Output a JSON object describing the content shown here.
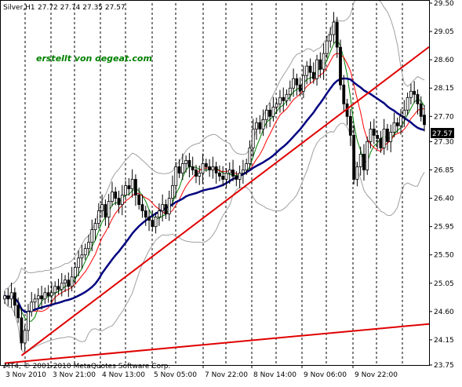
{
  "header": {
    "symbol_timeframe": "Silver,H1",
    "ohlc": "27.72 27.74 27.35 27.57"
  },
  "watermark": "erstellt von oegeat.com",
  "copyright": "MT4, © 2001-2010 MetaQuotes Software Corp.",
  "current_price": "27.57",
  "colors": {
    "background": "#ffffff",
    "candle_bull": "#ffffff",
    "candle_bear": "#000000",
    "trendline": "#e00000",
    "ma_slow": "#000080",
    "ma_fast": "#008000",
    "ma_red": "#ff0000",
    "bollinger": "#a0a0a0",
    "price_label_bg": "#000000"
  },
  "chart_data": {
    "type": "candlestick",
    "title": "Silver,H1",
    "ylim": [
      23.75,
      29.5
    ],
    "y_ticks": [
      "29.50",
      "29.05",
      "28.60",
      "28.15",
      "27.70",
      "27.30",
      "26.85",
      "26.40",
      "25.95",
      "25.50",
      "25.05",
      "24.60",
      "24.15",
      "23.75"
    ],
    "x_ticks": [
      "3 Nov 2010",
      "3 Nov 21:00",
      "4 Nov 13:00",
      "5 Nov 05:00",
      "7 Nov 22:00",
      "8 Nov 14:00",
      "9 Nov 06:00",
      "9 Nov 22:00"
    ],
    "series": [
      {
        "name": "",
        "close": [
          24.85,
          24.8,
          24.9,
          24.7,
          24.5,
          24.1,
          24.3,
          24.6,
          24.75,
          24.8,
          24.85,
          24.8,
          24.9,
          24.85,
          24.9,
          25.0,
          24.95,
          25.05,
          25.1,
          25.0,
          25.15,
          25.3,
          25.45,
          25.5,
          25.6,
          25.7,
          25.9,
          26.0,
          26.2,
          26.3,
          26.1,
          26.35,
          26.5,
          26.4,
          26.3,
          26.45,
          26.6,
          26.55,
          26.7,
          26.45,
          26.3,
          26.2,
          26.1,
          26.05,
          25.95,
          26.1,
          26.2,
          26.3,
          26.15,
          26.4,
          26.6,
          26.9,
          26.8,
          26.95,
          27.0,
          26.9,
          26.85,
          26.75,
          26.8,
          26.95,
          26.9,
          26.85,
          26.9,
          26.8,
          26.75,
          26.7,
          26.8,
          26.85,
          26.75,
          26.7,
          26.8,
          26.85,
          26.95,
          27.2,
          27.5,
          27.6,
          27.5,
          27.65,
          27.8,
          27.7,
          27.85,
          27.9,
          28.0,
          27.95,
          28.05,
          28.15,
          28.3,
          28.2,
          28.1,
          28.35,
          28.5,
          28.4,
          28.3,
          28.6,
          28.45,
          28.7,
          28.9,
          29.0,
          29.2,
          28.8,
          28.2,
          27.9,
          27.7,
          27.4,
          26.7,
          26.9,
          27.1,
          26.85,
          27.3,
          27.5,
          27.4,
          27.35,
          27.2,
          27.5,
          27.3,
          27.45,
          27.6,
          27.55,
          27.7,
          27.8,
          28.0,
          28.1,
          28.05,
          27.9,
          27.7,
          27.57
        ],
        "open": [
          24.8,
          24.85,
          24.8,
          24.9,
          24.7,
          24.5,
          24.1,
          24.3,
          24.6,
          24.75,
          24.8,
          24.85,
          24.8,
          24.9,
          24.85,
          24.9,
          25.0,
          24.95,
          25.05,
          25.1,
          25.0,
          25.15,
          25.3,
          25.45,
          25.5,
          25.6,
          25.7,
          25.9,
          26.0,
          26.2,
          26.3,
          26.1,
          26.35,
          26.5,
          26.4,
          26.3,
          26.45,
          26.6,
          26.55,
          26.7,
          26.45,
          26.3,
          26.2,
          26.1,
          26.05,
          25.95,
          26.1,
          26.2,
          26.3,
          26.15,
          26.4,
          26.6,
          26.9,
          26.8,
          26.95,
          27.0,
          26.9,
          26.85,
          26.75,
          26.8,
          26.95,
          26.9,
          26.85,
          26.9,
          26.8,
          26.75,
          26.7,
          26.8,
          26.85,
          26.75,
          26.7,
          26.8,
          26.85,
          26.95,
          27.2,
          27.5,
          27.6,
          27.5,
          27.65,
          27.8,
          27.7,
          27.85,
          27.9,
          28.0,
          27.95,
          28.05,
          28.15,
          28.3,
          28.2,
          28.1,
          28.35,
          28.5,
          28.4,
          28.3,
          28.6,
          28.45,
          28.7,
          28.9,
          29.0,
          29.2,
          28.8,
          28.2,
          27.9,
          27.7,
          27.4,
          26.7,
          26.9,
          27.1,
          26.85,
          27.3,
          27.5,
          27.4,
          27.35,
          27.2,
          27.5,
          27.3,
          27.45,
          27.6,
          27.55,
          27.7,
          27.8,
          28.0,
          28.1,
          28.05,
          27.9,
          27.72
        ]
      }
    ],
    "indicators": [
      "Bollinger Bands",
      "Moving Average (green)",
      "Moving Average (red)",
      "Moving Average (navy)"
    ],
    "trendlines": [
      {
        "from": {
          "x_index": 5,
          "y": 23.9
        },
        "to": {
          "x_index": 130,
          "y": 28.95
        }
      },
      {
        "from": {
          "x_index": 0,
          "y": 23.78
        },
        "to": {
          "x_index": 130,
          "y": 24.42
        }
      }
    ],
    "grid": true
  }
}
